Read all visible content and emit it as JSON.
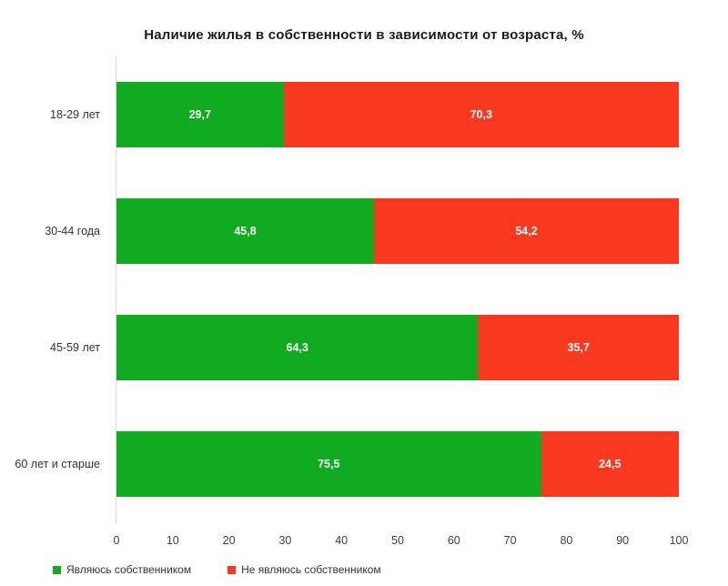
{
  "chart_data": {
    "type": "bar",
    "orientation": "horizontal",
    "stacked": true,
    "title": "Наличие жилья в собственности в зависимости от возраста, %",
    "categories": [
      "18-29 лет",
      "30-44 года",
      "45-59 лет",
      "60 лет и старше"
    ],
    "series": [
      {
        "name": "Являюсь собственником",
        "color": "#10ab20",
        "values": [
          29.7,
          45.8,
          64.3,
          75.5
        ],
        "labels": [
          "29,7",
          "45,8",
          "64,3",
          "75,5"
        ]
      },
      {
        "name": "Не являюсь собственником",
        "color": "#f9391f",
        "values": [
          70.3,
          54.2,
          35.7,
          24.5
        ],
        "labels": [
          "70,3",
          "54,2",
          "35,7",
          "24,5"
        ]
      }
    ],
    "xlim": [
      0,
      100
    ],
    "x_ticks": [
      0,
      10,
      20,
      30,
      40,
      50,
      60,
      70,
      80,
      90,
      100
    ],
    "xlabel": "",
    "ylabel": "",
    "grid": false,
    "legend_position": "bottom-left",
    "value_label_color": "#ffffff",
    "axis_line_color": "#d9d9d9"
  }
}
